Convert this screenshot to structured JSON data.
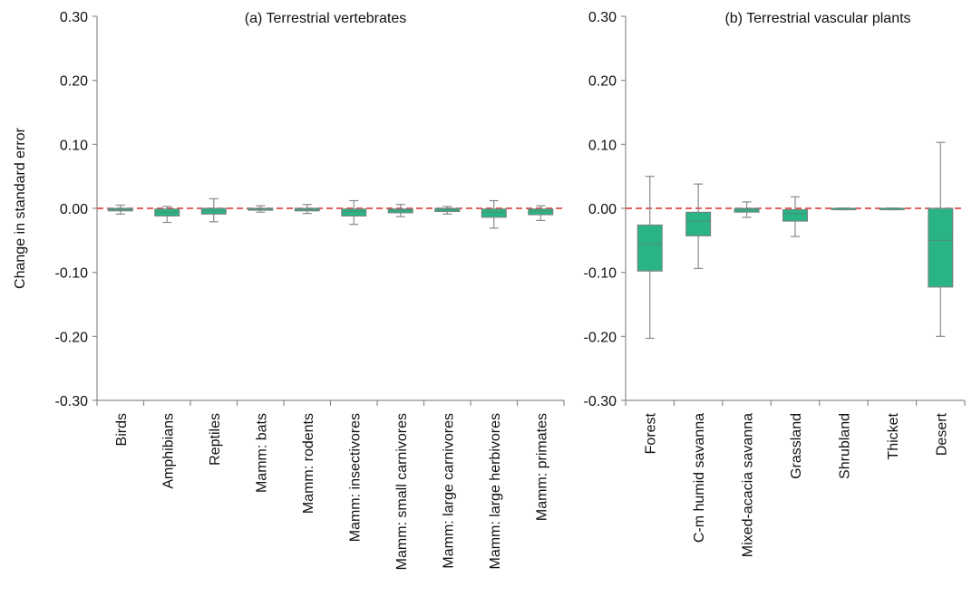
{
  "shared": {
    "ylabel": "Change in standard error",
    "ylim": [
      -0.3,
      0.3
    ],
    "yticks": [
      {
        "value": 0.3,
        "label": "0.30"
      },
      {
        "value": 0.2,
        "label": "0.20"
      },
      {
        "value": 0.1,
        "label": "0.10"
      },
      {
        "value": 0.0,
        "label": "0.00"
      },
      {
        "value": -0.1,
        "label": "-0.10"
      },
      {
        "value": -0.2,
        "label": "-0.20"
      },
      {
        "value": -0.3,
        "label": "-0.30"
      }
    ],
    "colors": {
      "box": "#2ab384",
      "whisker": "#8a8a8a",
      "reference_line": "#d9302c",
      "axis": "#8c8c8c"
    }
  },
  "chart_data": [
    {
      "type": "box",
      "title": "(a) Terrestrial vertebrates",
      "xlabel": "",
      "ylabel": "Change in standard error",
      "ylim": [
        -0.3,
        0.3
      ],
      "reference_line": 0.0,
      "categories": [
        "Birds",
        "Amphibians",
        "Reptiles",
        "Mamm: bats",
        "Mamm: rodents",
        "Mamm: insectivores",
        "Mamm: small carnivores",
        "Mamm: large carnivores",
        "Mamm: large herbivores",
        "Mamm: primates"
      ],
      "boxes": [
        {
          "min": -0.009,
          "q1": -0.004,
          "median": -0.002,
          "q3": 0.0,
          "max": 0.005
        },
        {
          "min": -0.022,
          "q1": -0.012,
          "median": -0.006,
          "q3": -0.001,
          "max": 0.003
        },
        {
          "min": -0.021,
          "q1": -0.009,
          "median": -0.004,
          "q3": 0.0,
          "max": 0.015
        },
        {
          "min": -0.006,
          "q1": -0.003,
          "median": -0.001,
          "q3": 0.0,
          "max": 0.004
        },
        {
          "min": -0.008,
          "q1": -0.004,
          "median": -0.002,
          "q3": 0.0,
          "max": 0.006
        },
        {
          "min": -0.025,
          "q1": -0.012,
          "median": -0.005,
          "q3": -0.001,
          "max": 0.012
        },
        {
          "min": -0.013,
          "q1": -0.007,
          "median": -0.003,
          "q3": -0.001,
          "max": 0.006
        },
        {
          "min": -0.009,
          "q1": -0.005,
          "median": -0.002,
          "q3": 0.0,
          "max": 0.003
        },
        {
          "min": -0.031,
          "q1": -0.014,
          "median": -0.006,
          "q3": -0.001,
          "max": 0.012
        },
        {
          "min": -0.019,
          "q1": -0.01,
          "median": -0.004,
          "q3": -0.001,
          "max": 0.004
        }
      ]
    },
    {
      "type": "box",
      "title": "(b) Terrestrial vascular plants",
      "xlabel": "",
      "ylabel": "",
      "ylim": [
        -0.3,
        0.3
      ],
      "reference_line": 0.0,
      "categories": [
        "Forest",
        "C-m humid savanna",
        "Mixed-acacia savanna",
        "Grassland",
        "Shrubland",
        "Thicket",
        "Desert"
      ],
      "boxes": [
        {
          "min": -0.203,
          "q1": -0.098,
          "median": -0.055,
          "q3": -0.026,
          "max": 0.05
        },
        {
          "min": -0.094,
          "q1": -0.043,
          "median": -0.02,
          "q3": -0.006,
          "max": 0.038
        },
        {
          "min": -0.014,
          "q1": -0.006,
          "median": -0.002,
          "q3": 0.0,
          "max": 0.01
        },
        {
          "min": -0.044,
          "q1": -0.02,
          "median": -0.008,
          "q3": -0.002,
          "max": 0.018
        },
        {
          "min": -0.001,
          "q1": -0.0005,
          "median": 0.0,
          "q3": 0.0,
          "max": 0.0005
        },
        {
          "min": -0.001,
          "q1": -0.0005,
          "median": 0.0,
          "q3": 0.0,
          "max": 0.0005
        },
        {
          "min": -0.2,
          "q1": -0.123,
          "median": -0.05,
          "q3": 0.0,
          "max": 0.103
        }
      ]
    }
  ]
}
